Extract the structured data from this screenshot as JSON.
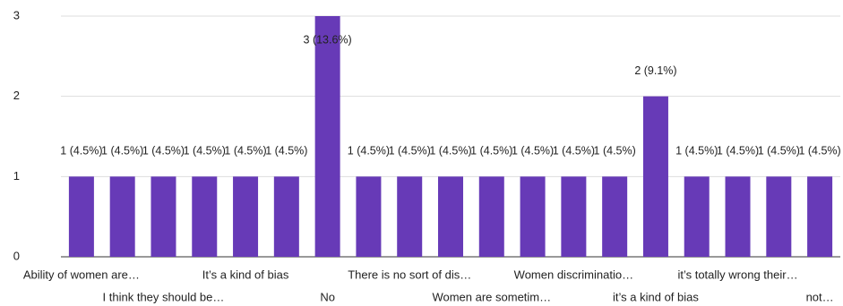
{
  "chart_data": {
    "type": "bar",
    "categories": [
      "Ability of women are…",
      null,
      "I think they should be…",
      null,
      "It’s a kind of bias",
      null,
      "No",
      null,
      "There is no sort of dis…",
      null,
      "Women are sometim…",
      null,
      "Women discriminatio…",
      null,
      "it’s a kind of bias",
      null,
      "it’s totally wrong their…",
      null,
      "not…"
    ],
    "values": [
      1,
      1,
      1,
      1,
      1,
      1,
      3,
      1,
      1,
      1,
      1,
      1,
      1,
      1,
      2,
      1,
      1,
      1,
      1
    ],
    "value_labels": [
      "1 (4.5%)",
      "1 (4.5%)",
      "1 (4.5%)",
      "1 (4.5%)",
      "1 (4.5%)",
      "1 (4.5%)",
      "3 (13.6%)",
      "1 (4.5%)",
      "1 (4.5%)",
      "1 (4.5%)",
      "1 (4.5%)",
      "1 (4.5%)",
      "1 (4.5%)",
      "1 (4.5%)",
      "2 (9.1%)",
      "1 (4.5%)",
      "1 (4.5%)",
      "1 (4.5%)",
      "1 (4.5%)"
    ],
    "color": "#673ab7",
    "ylim": [
      0,
      3
    ],
    "yticks": [
      0,
      1,
      2,
      3
    ],
    "grid": true
  }
}
